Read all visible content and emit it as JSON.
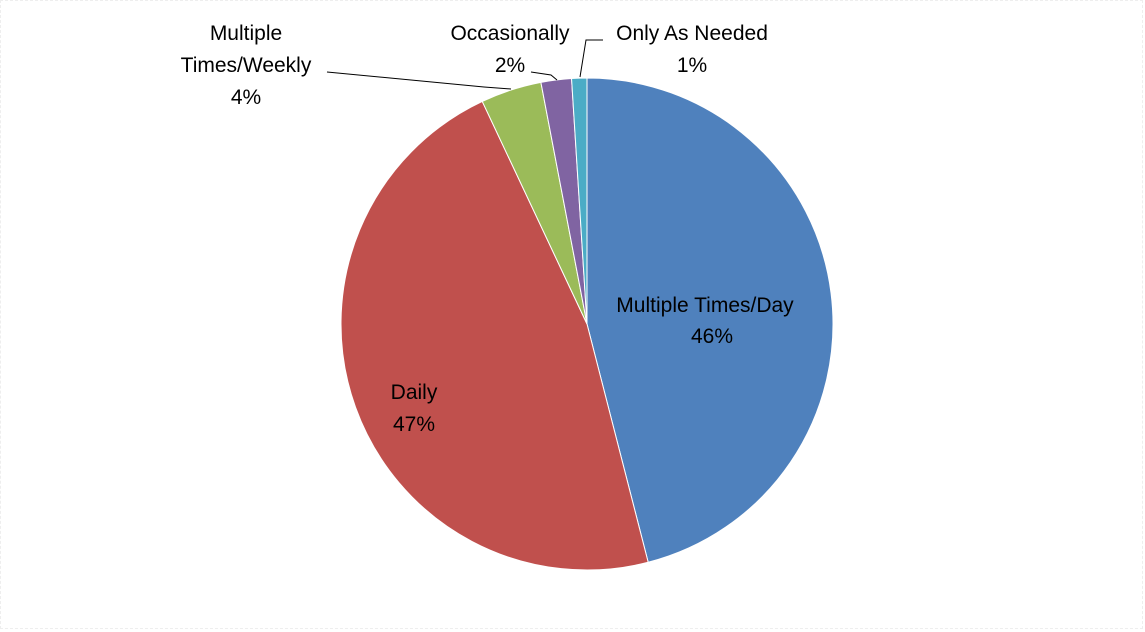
{
  "chart_data": {
    "type": "pie",
    "title": "",
    "slices": [
      {
        "label": "Multiple Times/Day",
        "value": 46,
        "percent_label": "46%",
        "color": "#4F81BD"
      },
      {
        "label": "Daily",
        "value": 47,
        "percent_label": "47%",
        "color": "#C0504D"
      },
      {
        "label": "Multiple Times/Weekly",
        "value": 4,
        "percent_label": "4%",
        "color": "#9BBB59"
      },
      {
        "label": "Occasionally",
        "value": 2,
        "percent_label": "2%",
        "color": "#8064A2"
      },
      {
        "label": "Only As Needed",
        "value": 1,
        "percent_label": "1%",
        "color": "#4BACC6"
      }
    ],
    "start_angle": "12 o'clock",
    "direction": "clockwise",
    "legend": "none"
  }
}
